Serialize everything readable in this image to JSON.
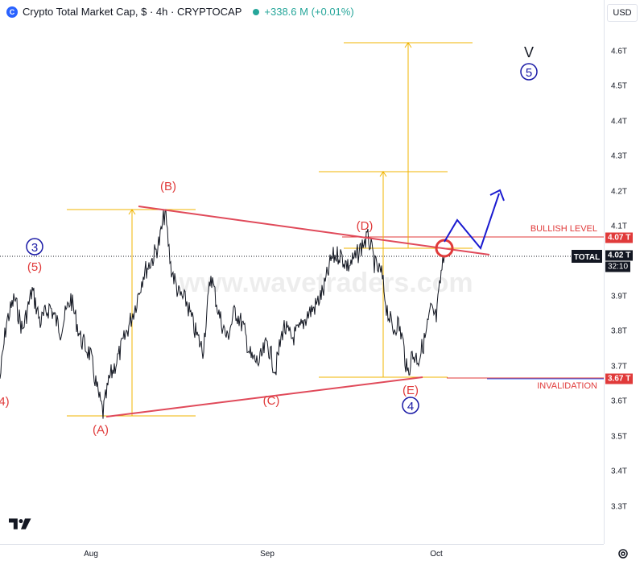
{
  "header": {
    "logo_icon": "crypto-logo-icon",
    "title": "Crypto Total Market Cap, $ · 4h · CRYPTOCAP",
    "change": "+338.6 M (+0.01%)",
    "change_color": "#26a69a"
  },
  "currency": "USD",
  "price_axis": {
    "ticks": [
      "4.6T",
      "4.5T",
      "4.4T",
      "4.3T",
      "4.2T",
      "4.1T",
      "3.9T",
      "3.8T",
      "3.7T",
      "3.6T",
      "3.5T",
      "3.4T",
      "3.3T"
    ],
    "bullish_tag": "4.07 T",
    "current_tag": "4.02 T",
    "countdown": "32:10",
    "invalidation_tag": "3.67 T"
  },
  "time_axis": [
    "Aug",
    "Sep",
    "Oct"
  ],
  "annotations": {
    "wave_v": "V",
    "wave_5": "5",
    "wave_3": "3",
    "wave_paren5": "(5)",
    "wave_paren4": "4)",
    "wave_A": "(A)",
    "wave_B": "(B)",
    "wave_C": "(C)",
    "wave_D": "(D)",
    "wave_E": "(E)",
    "wave_4": "4",
    "bullish_level": "BULLISH LEVEL",
    "invalidation": "INVALIDATION",
    "total_label": "TOTAL",
    "watermark": "www.wavetraders.com"
  },
  "colors": {
    "red": "#e03a3a",
    "navy": "#1a1aa6",
    "gold": "#f0b400",
    "price": "#131722"
  }
}
